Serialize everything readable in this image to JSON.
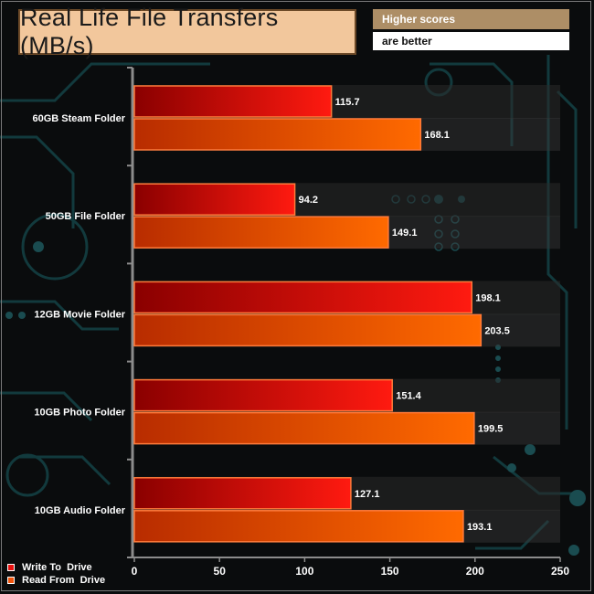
{
  "chart_data": {
    "type": "bar",
    "orientation": "horizontal",
    "title": "Real Life File Transfers (MB/s)",
    "note": [
      "Higher scores",
      "are better"
    ],
    "categories": [
      "60GB Steam Folder",
      "50GB File Folder",
      "12GB Movie Folder",
      "10GB Photo Folder",
      "10GB Audio Folder"
    ],
    "series": [
      {
        "name": "Write To  Drive",
        "values": [
          115.7,
          94.2,
          198.1,
          151.4,
          127.1
        ],
        "color": "#e8100e"
      },
      {
        "name": "Read From  Drive",
        "values": [
          168.1,
          149.1,
          203.5,
          199.5,
          193.1
        ],
        "color": "#f0530c"
      }
    ],
    "xlim": [
      0,
      250
    ],
    "xticks": [
      0,
      50,
      100,
      150,
      200,
      250
    ],
    "legend_position": "bottom-left"
  },
  "colors": {
    "title_bg": "#f2c79c",
    "note_top_bg": "#ad8e66",
    "note_bottom_bg": "#ffffff",
    "write_dark": "#8a0000",
    "write_light": "#ff1a10",
    "read_dark": "#b82c00",
    "read_light": "#ff6a00",
    "bar_border": "#ff7a3a",
    "axis": "#8c8c8c",
    "circuit": "#12363a"
  }
}
